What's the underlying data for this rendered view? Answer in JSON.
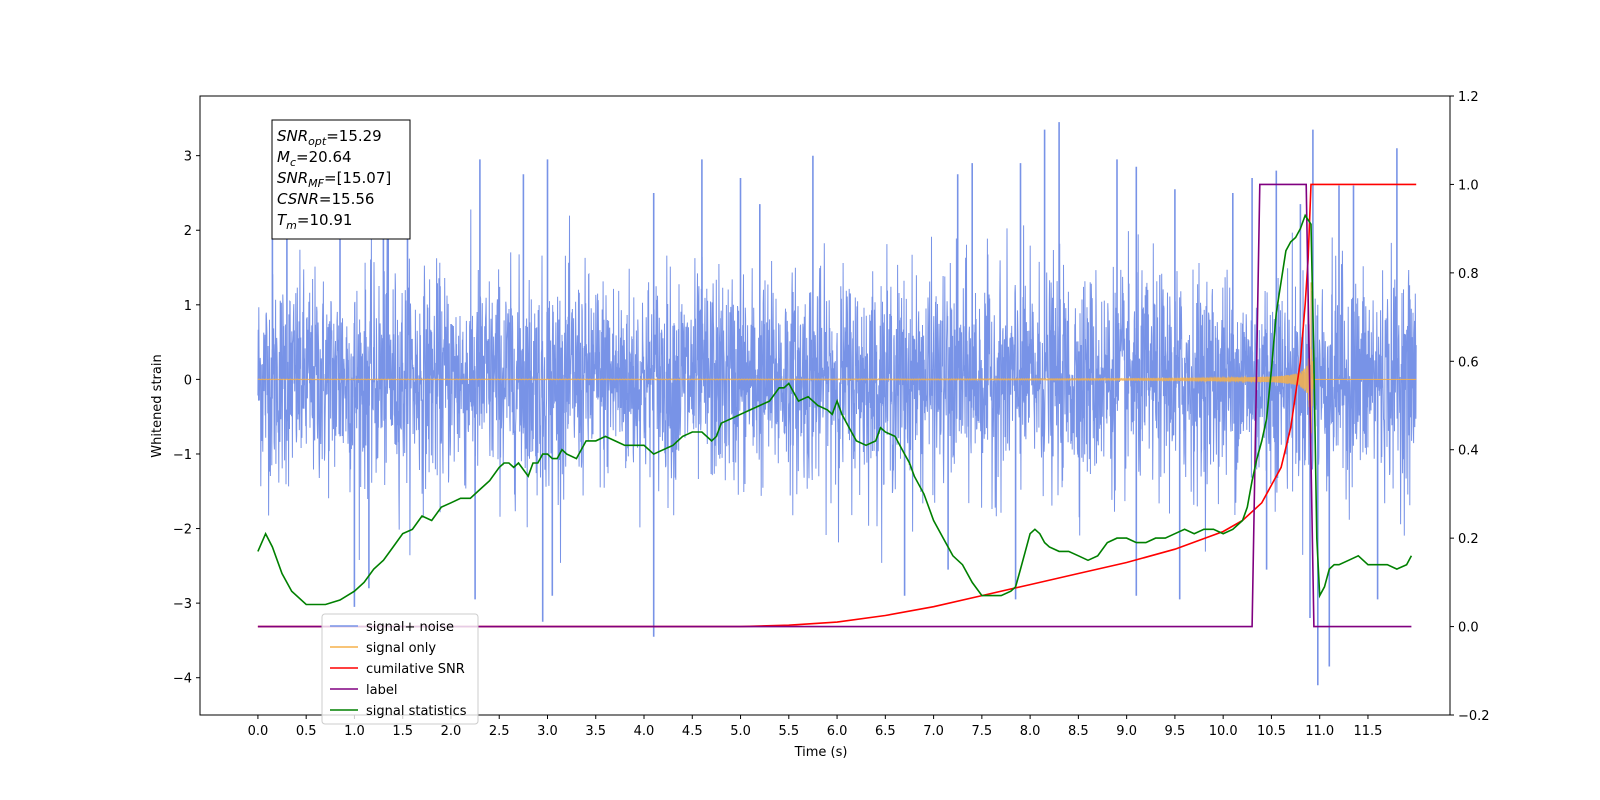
{
  "chart_data": {
    "type": "line",
    "xlabel": "Time (s)",
    "ylabel": "Whitened strain",
    "xlim": [
      -0.6,
      12.35
    ],
    "ylim": [
      -4.5,
      3.8
    ],
    "y2lim": [
      -0.2,
      1.2
    ],
    "x_ticks": [
      0.0,
      0.5,
      1.0,
      1.5,
      2.0,
      2.5,
      3.0,
      3.5,
      4.0,
      4.5,
      5.0,
      5.5,
      6.0,
      6.5,
      7.0,
      7.5,
      8.0,
      8.5,
      9.0,
      9.5,
      10.0,
      10.5,
      11.0,
      11.5
    ],
    "x_tick_labels": [
      "0.0",
      "0.5",
      "1.0",
      "1.5",
      "2.0",
      "2.5",
      "3.0",
      "3.5",
      "4.0",
      "4.5",
      "5.0",
      "5.5",
      "6.0",
      "6.5",
      "7.0",
      "7.5",
      "8.0",
      "8.5",
      "9.0",
      "9.5",
      "10.0",
      "10.5",
      "11.0",
      "11.5"
    ],
    "y_ticks": [
      -4,
      -3,
      -2,
      -1,
      0,
      1,
      2,
      3
    ],
    "y_tick_labels": [
      "−4",
      "−3",
      "−2",
      "−1",
      "0",
      "1",
      "2",
      "3"
    ],
    "y2_ticks": [
      -0.2,
      0.0,
      0.2,
      0.4,
      0.6,
      0.8,
      1.0,
      1.2
    ],
    "y2_tick_labels": [
      "−0.2",
      "0.0",
      "0.2",
      "0.4",
      "0.6",
      "0.8",
      "1.0",
      "1.2"
    ],
    "grid": false,
    "legend_position": "lower-left",
    "annotation": {
      "lines": [
        {
          "sym": "SNR",
          "sub": "opt",
          "rest": "=15.29"
        },
        {
          "sym": "M",
          "sub": "c",
          "rest": "=20.64"
        },
        {
          "sym": "SNR",
          "sub": "MF",
          "rest": "=[15.07]"
        },
        {
          "sym": "CSNR",
          "sub": "",
          "rest": "=15.56"
        },
        {
          "sym": "T",
          "sub": "m",
          "rest": "=10.91"
        }
      ]
    },
    "series": [
      {
        "name": "signal+ noise",
        "axis": "left",
        "color": "#7893e7",
        "kind": "noise",
        "x_start": 0.0,
        "x_end": 12.0,
        "typical_range": [
          -1.6,
          1.6
        ],
        "extreme_range": [
          -4.1,
          3.45
        ],
        "peaks": [
          {
            "x": 0.15,
            "y": 2.4
          },
          {
            "x": 0.3,
            "y": 2.65
          },
          {
            "x": 0.85,
            "y": 2.4
          },
          {
            "x": 1.3,
            "y": 2.8
          },
          {
            "x": 1.35,
            "y": 3.05
          },
          {
            "x": 1.55,
            "y": 2.55
          },
          {
            "x": 2.3,
            "y": 2.95
          },
          {
            "x": 2.75,
            "y": 2.75
          },
          {
            "x": 3.0,
            "y": 2.95
          },
          {
            "x": 4.1,
            "y": 2.5
          },
          {
            "x": 4.6,
            "y": 2.95
          },
          {
            "x": 5.0,
            "y": 2.7
          },
          {
            "x": 5.2,
            "y": 2.35
          },
          {
            "x": 5.75,
            "y": 3.0
          },
          {
            "x": 7.25,
            "y": 2.75
          },
          {
            "x": 7.4,
            "y": 2.9
          },
          {
            "x": 7.9,
            "y": 2.9
          },
          {
            "x": 8.15,
            "y": 3.35
          },
          {
            "x": 8.3,
            "y": 3.45
          },
          {
            "x": 8.9,
            "y": 2.95
          },
          {
            "x": 9.1,
            "y": 2.85
          },
          {
            "x": 9.5,
            "y": 2.55
          },
          {
            "x": 10.1,
            "y": 2.5
          },
          {
            "x": 10.3,
            "y": 2.7
          },
          {
            "x": 10.55,
            "y": 2.8
          },
          {
            "x": 10.8,
            "y": 2.35
          },
          {
            "x": 10.93,
            "y": 3.35
          },
          {
            "x": 11.2,
            "y": 2.6
          },
          {
            "x": 11.35,
            "y": 2.6
          },
          {
            "x": 11.8,
            "y": 3.1
          },
          {
            "x": 1.0,
            "y": -3.05
          },
          {
            "x": 1.15,
            "y": -2.8
          },
          {
            "x": 2.25,
            "y": -2.95
          },
          {
            "x": 2.95,
            "y": -3.25
          },
          {
            "x": 3.05,
            "y": -2.9
          },
          {
            "x": 4.1,
            "y": -3.45
          },
          {
            "x": 6.7,
            "y": -2.9
          },
          {
            "x": 7.15,
            "y": -2.55
          },
          {
            "x": 7.85,
            "y": -2.95
          },
          {
            "x": 9.1,
            "y": -2.9
          },
          {
            "x": 9.55,
            "y": -2.95
          },
          {
            "x": 10.45,
            "y": -2.55
          },
          {
            "x": 10.9,
            "y": -3.2
          },
          {
            "x": 10.98,
            "y": -4.1
          },
          {
            "x": 11.1,
            "y": -3.85
          },
          {
            "x": 11.6,
            "y": -2.95
          }
        ]
      },
      {
        "name": "signal only",
        "axis": "left",
        "color": "#f5b04a",
        "kind": "chirp",
        "x_start": 0.0,
        "x_end": 12.0,
        "merger_x": 10.91
      },
      {
        "name": "cumilative SNR",
        "axis": "right",
        "color": "#ff0000",
        "x": [
          0.0,
          3.0,
          5.0,
          5.5,
          6.0,
          6.5,
          7.0,
          7.5,
          8.0,
          8.5,
          9.0,
          9.5,
          10.0,
          10.2,
          10.4,
          10.6,
          10.7,
          10.8,
          10.85,
          10.88,
          10.91,
          10.95,
          12.0
        ],
        "y": [
          0.0,
          0.0,
          0.0,
          0.003,
          0.01,
          0.025,
          0.045,
          0.07,
          0.095,
          0.12,
          0.145,
          0.175,
          0.215,
          0.24,
          0.28,
          0.36,
          0.45,
          0.6,
          0.73,
          0.83,
          1.0,
          1.0,
          1.0
        ]
      },
      {
        "name": "label",
        "axis": "right",
        "color": "#800080",
        "x": [
          0.0,
          10.3,
          10.38,
          10.86,
          10.94,
          11.95
        ],
        "y": [
          0.0,
          0.0,
          1.0,
          1.0,
          0.0,
          0.0
        ]
      },
      {
        "name": "signal statistics",
        "axis": "right",
        "color": "#008000",
        "x": [
          0.0,
          0.08,
          0.15,
          0.25,
          0.35,
          0.5,
          0.7,
          0.85,
          1.0,
          1.1,
          1.2,
          1.3,
          1.4,
          1.5,
          1.6,
          1.7,
          1.8,
          1.9,
          2.0,
          2.1,
          2.2,
          2.3,
          2.4,
          2.5,
          2.55,
          2.6,
          2.65,
          2.7,
          2.8,
          2.85,
          2.9,
          2.95,
          3.0,
          3.05,
          3.1,
          3.15,
          3.2,
          3.3,
          3.4,
          3.5,
          3.6,
          3.7,
          3.8,
          3.9,
          4.0,
          4.1,
          4.2,
          4.3,
          4.4,
          4.5,
          4.6,
          4.7,
          4.75,
          4.8,
          4.9,
          5.0,
          5.1,
          5.2,
          5.3,
          5.4,
          5.45,
          5.5,
          5.55,
          5.6,
          5.7,
          5.8,
          5.9,
          5.95,
          6.0,
          6.05,
          6.1,
          6.2,
          6.3,
          6.4,
          6.45,
          6.5,
          6.6,
          6.7,
          6.75,
          6.8,
          6.9,
          7.0,
          7.1,
          7.2,
          7.3,
          7.4,
          7.5,
          7.6,
          7.7,
          7.8,
          7.85,
          7.9,
          7.95,
          8.0,
          8.05,
          8.1,
          8.15,
          8.2,
          8.3,
          8.4,
          8.5,
          8.6,
          8.7,
          8.8,
          8.9,
          9.0,
          9.1,
          9.2,
          9.3,
          9.4,
          9.5,
          9.6,
          9.7,
          9.8,
          9.9,
          10.0,
          10.1,
          10.2,
          10.25,
          10.3,
          10.35,
          10.4,
          10.45,
          10.5,
          10.55,
          10.6,
          10.65,
          10.7,
          10.75,
          10.8,
          10.85,
          10.88,
          10.91,
          10.94,
          10.97,
          11.0,
          11.05,
          11.1,
          11.15,
          11.2,
          11.3,
          11.4,
          11.5,
          11.6,
          11.7,
          11.8,
          11.9,
          11.95
        ],
        "y": [
          0.17,
          0.21,
          0.18,
          0.12,
          0.08,
          0.05,
          0.05,
          0.06,
          0.08,
          0.1,
          0.13,
          0.15,
          0.18,
          0.21,
          0.22,
          0.25,
          0.24,
          0.27,
          0.28,
          0.29,
          0.29,
          0.31,
          0.33,
          0.36,
          0.37,
          0.37,
          0.36,
          0.37,
          0.34,
          0.37,
          0.37,
          0.39,
          0.39,
          0.38,
          0.38,
          0.4,
          0.39,
          0.38,
          0.42,
          0.42,
          0.43,
          0.42,
          0.41,
          0.41,
          0.41,
          0.39,
          0.4,
          0.41,
          0.43,
          0.44,
          0.44,
          0.42,
          0.43,
          0.46,
          0.47,
          0.48,
          0.49,
          0.5,
          0.51,
          0.54,
          0.54,
          0.55,
          0.53,
          0.51,
          0.52,
          0.5,
          0.49,
          0.48,
          0.51,
          0.48,
          0.46,
          0.42,
          0.41,
          0.42,
          0.45,
          0.44,
          0.43,
          0.39,
          0.37,
          0.34,
          0.3,
          0.24,
          0.2,
          0.16,
          0.14,
          0.1,
          0.07,
          0.07,
          0.07,
          0.08,
          0.09,
          0.13,
          0.17,
          0.21,
          0.22,
          0.21,
          0.19,
          0.18,
          0.17,
          0.17,
          0.16,
          0.15,
          0.16,
          0.19,
          0.2,
          0.2,
          0.19,
          0.19,
          0.2,
          0.2,
          0.21,
          0.22,
          0.21,
          0.22,
          0.22,
          0.21,
          0.22,
          0.24,
          0.27,
          0.33,
          0.38,
          0.42,
          0.47,
          0.58,
          0.71,
          0.78,
          0.85,
          0.87,
          0.88,
          0.9,
          0.93,
          0.92,
          0.91,
          0.6,
          0.2,
          0.07,
          0.09,
          0.13,
          0.14,
          0.14,
          0.15,
          0.16,
          0.14,
          0.14,
          0.14,
          0.13,
          0.14,
          0.16
        ]
      }
    ],
    "legend_entries": [
      "signal+ noise",
      "signal only",
      "cumilative SNR",
      "label",
      "signal statistics"
    ]
  }
}
